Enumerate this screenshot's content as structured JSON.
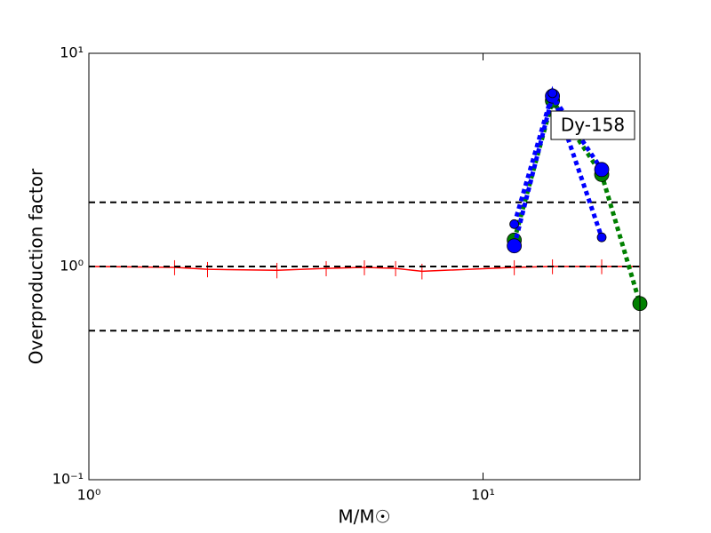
{
  "chart_data": {
    "type": "line",
    "xlabel": "M/M☉",
    "ylabel": "Overproduction factor",
    "xscale": "log",
    "yscale": "log",
    "xlim": [
      1,
      25
    ],
    "ylim": [
      0.1,
      10
    ],
    "xticks": [
      {
        "value": 1,
        "label": "10⁰"
      },
      {
        "value": 10,
        "label": "10¹"
      }
    ],
    "yticks": [
      {
        "value": 0.1,
        "label": "10⁻¹"
      },
      {
        "value": 1,
        "label": "10⁰"
      },
      {
        "value": 10,
        "label": "10¹"
      }
    ],
    "hlines": [
      0.5,
      1,
      2
    ],
    "hline_color": "#000000",
    "annotation": "Dy-158",
    "series": [
      {
        "color": "#ff0000",
        "style": "solid",
        "marker": "none",
        "x": [
          1,
          1.65,
          2,
          3,
          4,
          5,
          6,
          7,
          12,
          15,
          20,
          25
        ],
        "values": [
          1,
          0.99,
          0.97,
          0.96,
          0.98,
          0.99,
          0.98,
          0.95,
          0.99,
          1,
          1,
          1
        ],
        "errors": [
          0.08,
          0.08,
          0.08,
          0.08,
          0.08,
          0.08,
          0.08,
          0.08,
          0.08,
          0.08,
          0.08,
          0.08
        ]
      },
      {
        "color": "#008000",
        "style": "dotted",
        "marker": "large",
        "x": [
          12,
          15,
          20,
          25
        ],
        "values": [
          1.33,
          6.0,
          2.7,
          0.67
        ]
      },
      {
        "color": "#0000ff",
        "style": "dotted",
        "marker": "large",
        "x": [
          12,
          15,
          20
        ],
        "values": [
          1.25,
          6.3,
          2.85
        ]
      },
      {
        "color": "#0000ff",
        "style": "dotted",
        "marker": "small",
        "x": [
          12,
          15,
          20
        ],
        "values": [
          1.58,
          6.5,
          1.37
        ]
      }
    ]
  }
}
